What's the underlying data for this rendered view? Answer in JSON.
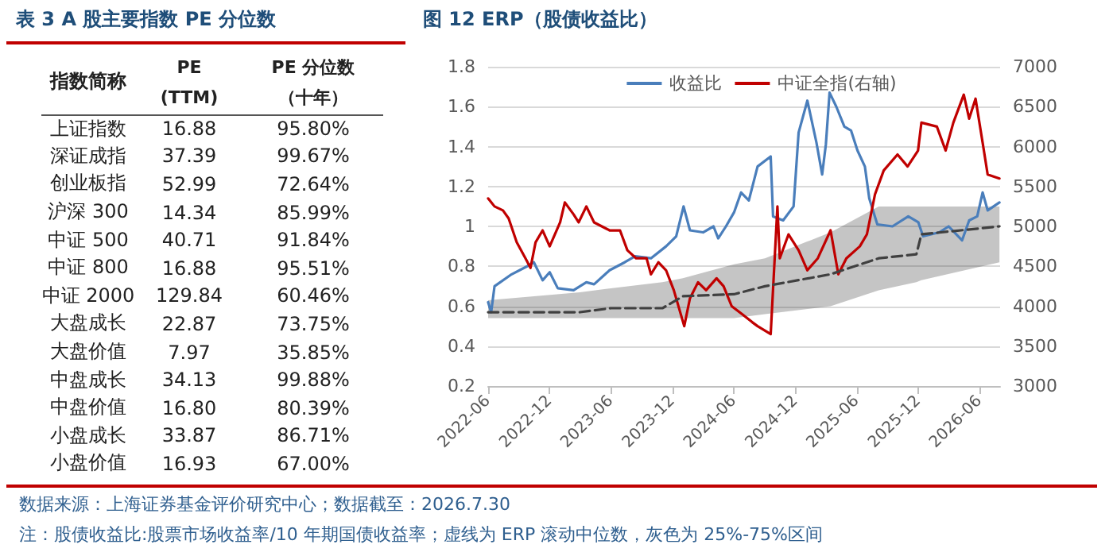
{
  "chart_data": [
    {
      "type": "other",
      "title": "表 3 A 股主要指数 PE 分位数",
      "xlabel": "指数简称",
      "categories": [
        "上证指数",
        "深证成指",
        "创业板指",
        "沪深 300",
        "中证 500",
        "中证 800",
        "中证 2000",
        "大盘成长",
        "大盘价值",
        "中盘成长",
        "中盘价值",
        "小盘成长",
        "小盘价值"
      ],
      "series": [
        {
          "name": "PE (TTM)",
          "values": [
            16.88,
            37.39,
            52.99,
            14.34,
            40.71,
            16.88,
            129.84,
            22.87,
            7.97,
            34.13,
            16.8,
            33.87,
            16.93
          ],
          "value_labels": [
            "16.88",
            "37.39",
            "52.99",
            "14.34",
            "40.71",
            "16.88",
            "129.84",
            "22.87",
            "7.97",
            "34.13",
            "16.80",
            "33.87",
            "16.93"
          ]
        },
        {
          "name": "PE 分位数（十年）",
          "values": [
            95.8,
            99.67,
            72.64,
            85.99,
            91.84,
            95.51,
            60.46,
            73.75,
            35.85,
            99.88,
            80.39,
            86.71,
            67.0
          ],
          "value_labels": [
            "95.80%",
            "99.67%",
            "72.64%",
            "85.99%",
            "91.84%",
            "95.51%",
            "60.46%",
            "73.75%",
            "35.85%",
            "99.88%",
            "80.39%",
            "86.71%",
            "67.00%"
          ]
        }
      ]
    },
    {
      "type": "line",
      "title": "图 12 ERP（股债收益比）",
      "xlim": [
        "2022-06-01",
        "2026-08-01"
      ],
      "xticks": [
        "2022-06",
        "2022-12",
        "2023-06",
        "2023-12",
        "2024-06",
        "2024-12",
        "2025-06",
        "2025-12",
        "2026-06"
      ],
      "ylim": [
        0.2,
        1.8
      ],
      "yticks": [
        0.2,
        0.4,
        0.6,
        0.8,
        1,
        1.2,
        1.4,
        1.6,
        1.8
      ],
      "y2lim": [
        3000,
        7000
      ],
      "y2ticks": [
        3000,
        3500,
        4000,
        4500,
        5000,
        5500,
        6000,
        6500,
        7000
      ],
      "grid": "y",
      "legend": "top",
      "marker": "none",
      "series": [
        {
          "name": "收益比",
          "color": "#4a7ebb",
          "x": [
            "2022-06-01",
            "2022-06-10",
            "2022-06-20",
            "2022-08-10",
            "2022-09-25",
            "2022-10-15",
            "2022-11-10",
            "2022-12-01",
            "2022-12-25",
            "2023-02-10",
            "2023-03-20",
            "2023-04-12",
            "2023-05-28",
            "2023-07-12",
            "2023-08-12",
            "2023-09-28",
            "2023-11-12",
            "2023-12-12",
            "2024-01-03",
            "2024-01-22",
            "2024-03-01",
            "2024-04-01",
            "2024-04-15",
            "2024-05-08",
            "2024-06-01",
            "2024-06-22",
            "2024-07-15",
            "2024-08-10",
            "2024-09-18",
            "2024-09-25",
            "2024-10-25",
            "2024-11-25",
            "2024-12-10",
            "2025-01-05",
            "2025-02-01",
            "2025-02-18",
            "2025-03-01",
            "2025-03-12",
            "2025-04-01",
            "2025-04-25",
            "2025-05-15",
            "2025-06-03",
            "2025-06-25",
            "2025-07-08",
            "2025-08-01",
            "2025-09-15",
            "2025-11-01",
            "2025-12-01",
            "2025-12-15",
            "2026-02-01",
            "2026-03-01",
            "2026-04-10",
            "2026-05-01",
            "2026-05-25",
            "2026-06-10",
            "2026-06-25",
            "2026-07-30"
          ],
          "values": [
            0.62,
            0.57,
            0.7,
            0.76,
            0.8,
            0.82,
            0.73,
            0.77,
            0.69,
            0.68,
            0.72,
            0.71,
            0.78,
            0.82,
            0.85,
            0.84,
            0.9,
            0.95,
            1.1,
            0.98,
            0.97,
            1.0,
            0.94,
            1.0,
            1.07,
            1.17,
            1.13,
            1.3,
            1.35,
            1.05,
            1.03,
            1.1,
            1.47,
            1.63,
            1.42,
            1.26,
            1.41,
            1.67,
            1.6,
            1.5,
            1.48,
            1.38,
            1.3,
            1.14,
            1.01,
            1.0,
            1.05,
            1.02,
            0.95,
            0.97,
            1.0,
            0.93,
            1.03,
            1.05,
            1.17,
            1.08,
            1.12
          ]
        },
        {
          "name": "中证全指(右轴)",
          "color": "#c00000",
          "axis": "y2",
          "x": [
            "2022-06-01",
            "2022-06-20",
            "2022-07-15",
            "2022-08-01",
            "2022-08-25",
            "2022-09-20",
            "2022-10-05",
            "2022-10-20",
            "2022-11-10",
            "2022-12-01",
            "2023-01-01",
            "2023-01-15",
            "2023-02-10",
            "2023-02-25",
            "2023-03-20",
            "2023-04-12",
            "2023-05-05",
            "2023-05-28",
            "2023-06-28",
            "2023-07-20",
            "2023-08-15",
            "2023-09-15",
            "2023-09-28",
            "2023-10-20",
            "2023-11-12",
            "2023-12-05",
            "2024-01-05",
            "2024-01-22",
            "2024-02-15",
            "2024-03-10",
            "2024-04-10",
            "2024-05-01",
            "2024-05-25",
            "2024-06-25",
            "2024-07-25",
            "2024-08-10",
            "2024-09-18",
            "2024-10-08",
            "2024-10-15",
            "2024-11-10",
            "2024-12-10",
            "2025-01-05",
            "2025-02-05",
            "2025-03-15",
            "2025-04-07",
            "2025-05-01",
            "2025-06-10",
            "2025-07-01",
            "2025-07-25",
            "2025-08-20",
            "2025-09-30",
            "2025-10-30",
            "2025-11-30",
            "2025-12-10",
            "2026-01-25",
            "2026-02-20",
            "2026-03-15",
            "2026-04-15",
            "2026-05-01",
            "2026-05-20",
            "2026-06-10",
            "2026-06-25",
            "2026-07-30"
          ],
          "values": [
            5350,
            5250,
            5200,
            5100,
            4800,
            4600,
            4480,
            4800,
            4950,
            4750,
            5050,
            5300,
            5150,
            5050,
            5250,
            5050,
            5000,
            4950,
            4950,
            4700,
            4600,
            4600,
            4400,
            4550,
            4450,
            4200,
            3750,
            4100,
            4300,
            4200,
            4350,
            4250,
            4000,
            3900,
            3800,
            3750,
            3650,
            5250,
            4600,
            4900,
            4700,
            4450,
            4600,
            4950,
            4400,
            4600,
            4750,
            4900,
            5400,
            5700,
            5900,
            5750,
            5950,
            6300,
            6250,
            5950,
            6300,
            6650,
            6350,
            6600,
            6050,
            5650,
            5600
          ]
        },
        {
          "color": "#404040",
          "line_style": "dashed",
          "x": [
            "2022-06-01",
            "2023-03-01",
            "2023-06-01",
            "2023-11-01",
            "2024-01-01",
            "2024-06-01",
            "2024-09-01",
            "2025-03-15",
            "2025-08-05",
            "2025-11-25",
            "2025-12-10",
            "2026-07-30"
          ],
          "values": [
            0.57,
            0.57,
            0.59,
            0.59,
            0.65,
            0.66,
            0.7,
            0.76,
            0.84,
            0.86,
            0.96,
            1.0
          ],
          "upper": [
            0.63,
            0.67,
            0.69,
            0.72,
            0.74,
            0.81,
            0.84,
            0.97,
            1.1,
            1.1,
            1.1,
            1.1
          ],
          "lower": [
            0.54,
            0.54,
            0.54,
            0.54,
            0.54,
            0.54,
            0.56,
            0.6,
            0.68,
            0.72,
            0.73,
            0.82
          ]
        }
      ],
      "annotations": [
        "数据来源：上海证券基金评价研究中心；数据截至：2026.7.30",
        "注：股债收益比:股票市场收益率/10 年期国债收益率；虚线为 ERP 滚动中位数，灰色为 25%-75%区间"
      ]
    }
  ]
}
